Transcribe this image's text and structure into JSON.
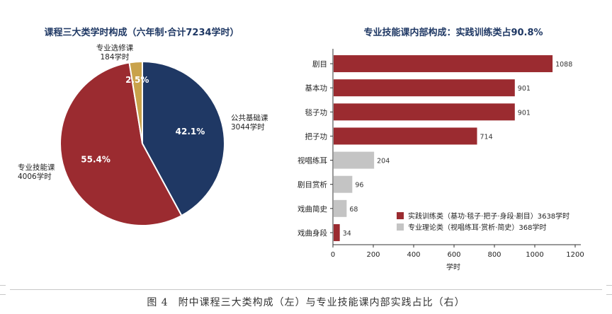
{
  "caption": {
    "label": "图 4",
    "text": "附中课程三大类构成（左）与专业技能课内部实践占比（右）"
  },
  "colors": {
    "public_basic": "#1f3864",
    "professional_skill": "#9b2b30",
    "elective": "#c9a24b",
    "practice": "#9b2b30",
    "theory": "#c4c4c4",
    "title": "#1f3864"
  },
  "chart_data": [
    {
      "type": "pie",
      "title": "课程三大类学时构成（六年制·合计7234学时）",
      "slices": [
        {
          "name": "公共基础课",
          "value": 3044,
          "value_label": "3044学时",
          "pct_label": "42.1%",
          "color": "#1f3864"
        },
        {
          "name": "专业技能课",
          "value": 4006,
          "value_label": "4006学时",
          "pct_label": "55.4%",
          "color": "#9b2b30"
        },
        {
          "name": "专业选修课",
          "value": 184,
          "value_label": "184学时",
          "pct_label": "2.5%",
          "color": "#c9a24b"
        }
      ]
    },
    {
      "type": "bar",
      "orientation": "horizontal",
      "title": "专业技能课内部构成：实践训练类占90.8%",
      "xlabel": "学时",
      "xlim": [
        0,
        1200
      ],
      "xticks": [
        0,
        200,
        400,
        600,
        800,
        1000,
        1200
      ],
      "grid": false,
      "legend_position": "bottom-right",
      "categories": [
        "剧目",
        "基本功",
        "毯子功",
        "把子功",
        "视唱练耳",
        "剧目赏析",
        "戏曲简史",
        "戏曲身段"
      ],
      "values": [
        1088,
        901,
        901,
        714,
        204,
        96,
        68,
        34
      ],
      "groups": [
        "practice",
        "practice",
        "practice",
        "practice",
        "theory",
        "theory",
        "theory",
        "practice"
      ],
      "legend": [
        {
          "key": "practice",
          "label": "实践训练类（基功·毯子·把子·身段·剧目）3638学时",
          "color": "#9b2b30"
        },
        {
          "key": "theory",
          "label": "专业理论类（视唱练耳·赏析·简史）368学时",
          "color": "#c4c4c4"
        }
      ]
    }
  ]
}
